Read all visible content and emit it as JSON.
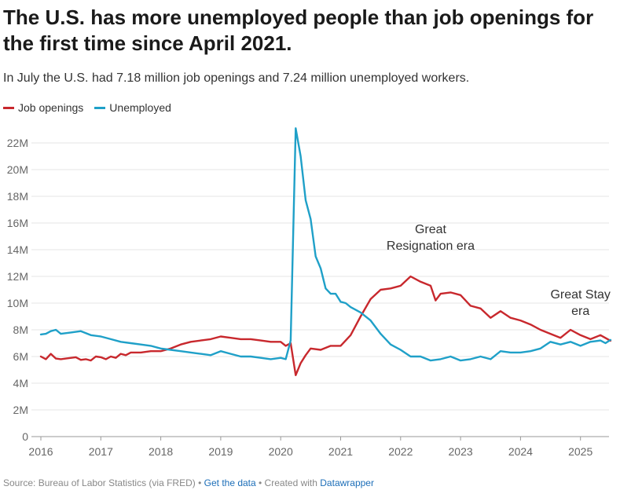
{
  "title": "The U.S. has more unemployed people than job openings for the first time since April 2021.",
  "subtitle": "In July the U.S. had 7.18 million job openings and 7.24 million unemployed workers.",
  "footer": {
    "source": "Source: Bureau of Labor Statistics (via FRED) • ",
    "get_data": "Get the data",
    "created": " • Created with ",
    "datawrapper": "Datawrapper"
  },
  "colors": {
    "job_openings": "#c8282d",
    "unemployed": "#1fa0c8",
    "grid": "#e5e5e5",
    "link": "#1c6eb8"
  },
  "chart_data": {
    "type": "line",
    "title": "The U.S. has more unemployed people than job openings for the first time since April 2021.",
    "xlabel": "",
    "ylabel": "",
    "ylim": [
      0,
      23000000
    ],
    "xlim": [
      "2016-01",
      "2025-07"
    ],
    "grid": true,
    "legend_position": "top-left",
    "y_ticks": [
      0,
      2000000,
      4000000,
      6000000,
      8000000,
      10000000,
      12000000,
      14000000,
      16000000,
      18000000,
      20000000,
      22000000
    ],
    "y_tick_labels": [
      "0",
      "2M",
      "4M",
      "6M",
      "8M",
      "10M",
      "12M",
      "14M",
      "16M",
      "18M",
      "20M",
      "22M"
    ],
    "x_ticks": [
      "2016",
      "2017",
      "2018",
      "2019",
      "2020",
      "2021",
      "2022",
      "2023",
      "2024",
      "2025"
    ],
    "series": [
      {
        "name": "Job openings",
        "color": "#c8282d",
        "points": [
          [
            "2016-01",
            6.0
          ],
          [
            "2016-02",
            5.8
          ],
          [
            "2016-03",
            6.2
          ],
          [
            "2016-04",
            5.85
          ],
          [
            "2016-05",
            5.8
          ],
          [
            "2016-06",
            5.85
          ],
          [
            "2016-08",
            5.95
          ],
          [
            "2016-09",
            5.75
          ],
          [
            "2016-10",
            5.8
          ],
          [
            "2016-11",
            5.7
          ],
          [
            "2016-12",
            6.0
          ],
          [
            "2017-01",
            5.95
          ],
          [
            "2017-02",
            5.8
          ],
          [
            "2017-03",
            6.0
          ],
          [
            "2017-04",
            5.9
          ],
          [
            "2017-05",
            6.2
          ],
          [
            "2017-06",
            6.1
          ],
          [
            "2017-07",
            6.3
          ],
          [
            "2017-09",
            6.3
          ],
          [
            "2017-11",
            6.4
          ],
          [
            "2018-01",
            6.4
          ],
          [
            "2018-03",
            6.6
          ],
          [
            "2018-05",
            6.9
          ],
          [
            "2018-07",
            7.1
          ],
          [
            "2018-09",
            7.2
          ],
          [
            "2018-11",
            7.3
          ],
          [
            "2019-01",
            7.5
          ],
          [
            "2019-03",
            7.4
          ],
          [
            "2019-05",
            7.3
          ],
          [
            "2019-07",
            7.3
          ],
          [
            "2019-09",
            7.2
          ],
          [
            "2019-11",
            7.1
          ],
          [
            "2020-01",
            7.1
          ],
          [
            "2020-02",
            6.8
          ],
          [
            "2020-03",
            7.0
          ],
          [
            "2020-04",
            4.6
          ],
          [
            "2020-05",
            5.5
          ],
          [
            "2020-06",
            6.1
          ],
          [
            "2020-07",
            6.6
          ],
          [
            "2020-09",
            6.5
          ],
          [
            "2020-11",
            6.8
          ],
          [
            "2021-01",
            6.8
          ],
          [
            "2021-03",
            7.6
          ],
          [
            "2021-05",
            9.0
          ],
          [
            "2021-07",
            10.3
          ],
          [
            "2021-09",
            11.0
          ],
          [
            "2021-11",
            11.1
          ],
          [
            "2022-01",
            11.3
          ],
          [
            "2022-03",
            12.0
          ],
          [
            "2022-05",
            11.6
          ],
          [
            "2022-07",
            11.3
          ],
          [
            "2022-08",
            10.2
          ],
          [
            "2022-09",
            10.7
          ],
          [
            "2022-11",
            10.8
          ],
          [
            "2023-01",
            10.6
          ],
          [
            "2023-03",
            9.8
          ],
          [
            "2023-05",
            9.6
          ],
          [
            "2023-07",
            8.9
          ],
          [
            "2023-09",
            9.4
          ],
          [
            "2023-11",
            8.9
          ],
          [
            "2024-01",
            8.7
          ],
          [
            "2024-03",
            8.4
          ],
          [
            "2024-05",
            8.0
          ],
          [
            "2024-07",
            7.7
          ],
          [
            "2024-09",
            7.4
          ],
          [
            "2024-11",
            8.0
          ],
          [
            "2025-01",
            7.6
          ],
          [
            "2025-03",
            7.3
          ],
          [
            "2025-05",
            7.6
          ],
          [
            "2025-07",
            7.18
          ]
        ]
      },
      {
        "name": "Unemployed",
        "color": "#1fa0c8",
        "points": [
          [
            "2016-01",
            7.65
          ],
          [
            "2016-02",
            7.7
          ],
          [
            "2016-03",
            7.9
          ],
          [
            "2016-04",
            8.0
          ],
          [
            "2016-05",
            7.7
          ],
          [
            "2016-07",
            7.8
          ],
          [
            "2016-09",
            7.9
          ],
          [
            "2016-11",
            7.6
          ],
          [
            "2017-01",
            7.5
          ],
          [
            "2017-03",
            7.3
          ],
          [
            "2017-05",
            7.1
          ],
          [
            "2017-07",
            7.0
          ],
          [
            "2017-09",
            6.9
          ],
          [
            "2017-11",
            6.8
          ],
          [
            "2018-01",
            6.6
          ],
          [
            "2018-03",
            6.5
          ],
          [
            "2018-05",
            6.4
          ],
          [
            "2018-07",
            6.3
          ],
          [
            "2018-09",
            6.2
          ],
          [
            "2018-11",
            6.1
          ],
          [
            "2019-01",
            6.4
          ],
          [
            "2019-03",
            6.2
          ],
          [
            "2019-05",
            6.0
          ],
          [
            "2019-07",
            6.0
          ],
          [
            "2019-09",
            5.9
          ],
          [
            "2019-11",
            5.8
          ],
          [
            "2020-01",
            5.9
          ],
          [
            "2020-02",
            5.8
          ],
          [
            "2020-03",
            7.2
          ],
          [
            "2020-04",
            23.1
          ],
          [
            "2020-05",
            21.0
          ],
          [
            "2020-06",
            17.7
          ],
          [
            "2020-07",
            16.3
          ],
          [
            "2020-08",
            13.5
          ],
          [
            "2020-09",
            12.6
          ],
          [
            "2020-10",
            11.1
          ],
          [
            "2020-11",
            10.7
          ],
          [
            "2020-12",
            10.7
          ],
          [
            "2021-01",
            10.1
          ],
          [
            "2021-02",
            10.0
          ],
          [
            "2021-03",
            9.7
          ],
          [
            "2021-05",
            9.3
          ],
          [
            "2021-07",
            8.7
          ],
          [
            "2021-09",
            7.7
          ],
          [
            "2021-11",
            6.9
          ],
          [
            "2022-01",
            6.5
          ],
          [
            "2022-03",
            6.0
          ],
          [
            "2022-05",
            6.0
          ],
          [
            "2022-07",
            5.7
          ],
          [
            "2022-09",
            5.8
          ],
          [
            "2022-11",
            6.0
          ],
          [
            "2023-01",
            5.7
          ],
          [
            "2023-03",
            5.8
          ],
          [
            "2023-05",
            6.0
          ],
          [
            "2023-07",
            5.8
          ],
          [
            "2023-09",
            6.4
          ],
          [
            "2023-11",
            6.3
          ],
          [
            "2024-01",
            6.3
          ],
          [
            "2024-03",
            6.4
          ],
          [
            "2024-05",
            6.6
          ],
          [
            "2024-07",
            7.1
          ],
          [
            "2024-09",
            6.9
          ],
          [
            "2024-11",
            7.1
          ],
          [
            "2025-01",
            6.8
          ],
          [
            "2025-03",
            7.1
          ],
          [
            "2025-05",
            7.2
          ],
          [
            "2025-06",
            7.0
          ],
          [
            "2025-07",
            7.24
          ]
        ]
      }
    ],
    "annotations": [
      {
        "lines": [
          "Great",
          "Resignation era"
        ],
        "x": "2022-07"
      },
      {
        "lines": [
          "Great Stay",
          "era"
        ],
        "x": "2025-01"
      }
    ]
  }
}
